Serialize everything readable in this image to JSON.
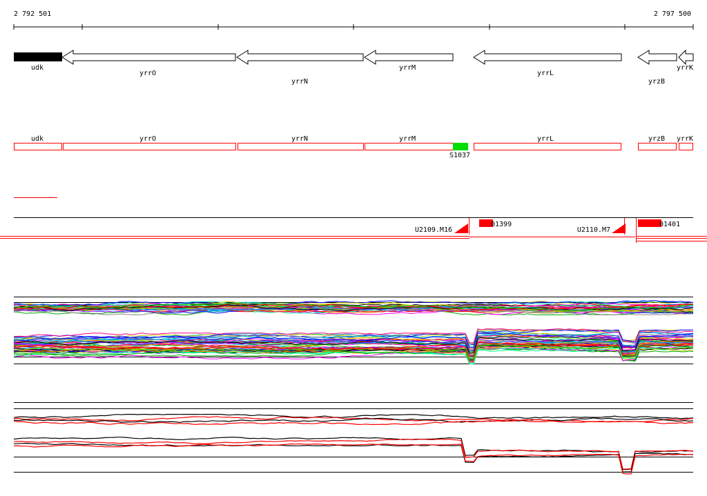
{
  "coords": {
    "start": "2 792 501",
    "end": "2 797 500"
  },
  "genes": [
    {
      "id": "udk",
      "label": "udk"
    },
    {
      "id": "yrrO",
      "label": "yrrO"
    },
    {
      "id": "yrrN",
      "label": "yrrN"
    },
    {
      "id": "yrrM",
      "label": "yrrM"
    },
    {
      "id": "yrrL",
      "label": "yrrL"
    },
    {
      "id": "yrzB",
      "label": "yrzB"
    },
    {
      "id": "yrrK",
      "label": "yrrK"
    }
  ],
  "annotations": [
    {
      "id": "udk",
      "label": "udk"
    },
    {
      "id": "yrrO",
      "label": "yrrO"
    },
    {
      "id": "yrrN",
      "label": "yrrN"
    },
    {
      "id": "yrrM",
      "label": "yrrM"
    },
    {
      "id": "yrrL",
      "label": "yrrL"
    },
    {
      "id": "yrzB",
      "label": "yrzB"
    },
    {
      "id": "yrrK",
      "label": "yrrK"
    }
  ],
  "features": {
    "s1037": "S1037",
    "u2109": "U2109.M16",
    "u2110": "U2110.M7",
    "i1399": "01399",
    "i1401": "01401"
  },
  "colors": {
    "gene_fill_highlight": "#000000",
    "annotation_box": "#ff0000",
    "sigma_feature": "#00dd00",
    "transcript": "#ff0000"
  }
}
